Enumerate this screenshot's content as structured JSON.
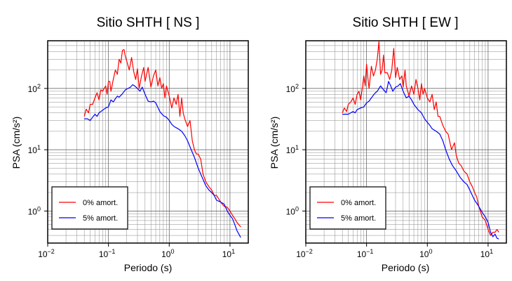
{
  "chart_data": [
    {
      "type": "line",
      "title": "Sitio SHTH [ NS ]",
      "xlabel": "Periodo (s)",
      "ylabel": "PSA (cm/s²)",
      "xscale": "log",
      "yscale": "log",
      "xlim": [
        0.01,
        20
      ],
      "ylim": [
        0.3,
        600
      ],
      "grid": true,
      "legend_position": "bottom-left",
      "x_ticks": [
        {
          "base": "10",
          "exp": "−2"
        },
        {
          "base": "10",
          "exp": "−1"
        },
        {
          "base": "10",
          "exp": "0"
        },
        {
          "base": "10",
          "exp": "1"
        }
      ],
      "y_ticks": [
        {
          "base": "10",
          "exp": "0"
        },
        {
          "base": "10",
          "exp": "1"
        },
        {
          "base": "10",
          "exp": "2"
        }
      ],
      "series": [
        {
          "name": "0% amort.",
          "color": "#ff0000",
          "x": [
            0.04,
            0.043,
            0.047,
            0.05,
            0.055,
            0.06,
            0.065,
            0.07,
            0.075,
            0.08,
            0.085,
            0.09,
            0.095,
            0.1,
            0.105,
            0.11,
            0.12,
            0.13,
            0.14,
            0.15,
            0.16,
            0.17,
            0.18,
            0.19,
            0.2,
            0.22,
            0.24,
            0.26,
            0.28,
            0.3,
            0.32,
            0.35,
            0.38,
            0.4,
            0.43,
            0.45,
            0.5,
            0.55,
            0.6,
            0.65,
            0.7,
            0.75,
            0.8,
            0.85,
            0.9,
            1.0,
            1.1,
            1.2,
            1.3,
            1.4,
            1.5,
            1.6,
            1.7,
            1.8,
            2.0,
            2.2,
            2.4,
            2.6,
            2.8,
            3.0,
            3.3,
            3.6,
            4.0,
            4.5,
            5.0,
            5.5,
            6.0,
            7.0,
            8.0,
            9.0,
            10.0,
            11.0,
            12.0,
            13.0,
            14.0,
            15.0
          ],
          "values": [
            35,
            46,
            40,
            55,
            55,
            70,
            85,
            65,
            95,
            90,
            100,
            110,
            80,
            130,
            130,
            90,
            140,
            200,
            170,
            300,
            260,
            420,
            430,
            330,
            280,
            200,
            320,
            190,
            140,
            210,
            100,
            160,
            220,
            130,
            180,
            220,
            105,
            160,
            200,
            110,
            150,
            100,
            120,
            70,
            110,
            75,
            48,
            70,
            55,
            80,
            35,
            70,
            40,
            32,
            24,
            30,
            14,
            10,
            8.5,
            8.5,
            7,
            4,
            3,
            2.5,
            2.2,
            1.8,
            1.8,
            1.4,
            1.2,
            1.15,
            1.0,
            0.85,
            0.75,
            0.65,
            0.6,
            0.55
          ]
        },
        {
          "name": "5% amort.",
          "color": "#0000ff",
          "x": [
            0.04,
            0.045,
            0.05,
            0.055,
            0.06,
            0.065,
            0.07,
            0.08,
            0.09,
            0.1,
            0.11,
            0.12,
            0.13,
            0.14,
            0.15,
            0.17,
            0.19,
            0.21,
            0.23,
            0.25,
            0.27,
            0.3,
            0.33,
            0.36,
            0.4,
            0.45,
            0.5,
            0.55,
            0.6,
            0.7,
            0.8,
            0.9,
            1.0,
            1.1,
            1.2,
            1.4,
            1.6,
            1.8,
            2.0,
            2.3,
            2.6,
            3.0,
            3.5,
            4.0,
            4.5,
            5.0,
            5.5,
            6.0,
            7.0,
            8.0,
            9.0,
            10.0,
            11.0,
            12.0,
            13.0,
            14.0,
            15.0
          ],
          "values": [
            32,
            32,
            30,
            34,
            38,
            35,
            40,
            44,
            48,
            50,
            65,
            60,
            68,
            75,
            72,
            82,
            95,
            100,
            105,
            115,
            110,
            100,
            90,
            105,
            80,
            62,
            60,
            62,
            58,
            42,
            36,
            34,
            30,
            26,
            24,
            22,
            20,
            17,
            14,
            10,
            7.5,
            5,
            3.5,
            2.6,
            2.2,
            2.0,
            1.8,
            1.5,
            1.4,
            1.3,
            1.0,
            0.85,
            0.75,
            0.6,
            0.48,
            0.42,
            0.37
          ]
        }
      ]
    },
    {
      "type": "line",
      "title": "Sitio SHTH [ EW ]",
      "xlabel": "Periodo (s)",
      "ylabel": "PSA (cm/s²)",
      "xscale": "log",
      "yscale": "log",
      "xlim": [
        0.01,
        20
      ],
      "ylim": [
        0.3,
        600
      ],
      "grid": true,
      "legend_position": "bottom-left",
      "x_ticks": [
        {
          "base": "10",
          "exp": "−2"
        },
        {
          "base": "10",
          "exp": "−1"
        },
        {
          "base": "10",
          "exp": "0"
        },
        {
          "base": "10",
          "exp": "1"
        }
      ],
      "y_ticks": [
        {
          "base": "10",
          "exp": "0"
        },
        {
          "base": "10",
          "exp": "1"
        },
        {
          "base": "10",
          "exp": "2"
        }
      ],
      "series": [
        {
          "name": "0% amort.",
          "color": "#ff0000",
          "x": [
            0.04,
            0.043,
            0.047,
            0.05,
            0.055,
            0.06,
            0.065,
            0.07,
            0.075,
            0.08,
            0.085,
            0.09,
            0.095,
            0.1,
            0.105,
            0.11,
            0.12,
            0.13,
            0.14,
            0.15,
            0.16,
            0.17,
            0.18,
            0.19,
            0.2,
            0.22,
            0.24,
            0.26,
            0.28,
            0.3,
            0.32,
            0.35,
            0.38,
            0.4,
            0.43,
            0.45,
            0.5,
            0.55,
            0.6,
            0.65,
            0.7,
            0.75,
            0.8,
            0.85,
            0.9,
            1.0,
            1.1,
            1.2,
            1.3,
            1.4,
            1.5,
            1.6,
            1.8,
            2.0,
            2.2,
            2.5,
            2.8,
            3.0,
            3.3,
            3.6,
            4.0,
            4.5,
            5.0,
            5.5,
            6.0,
            6.5,
            7.0,
            8.0,
            9.0,
            10.0,
            11.0,
            12.0,
            13.0,
            14.0,
            15.0
          ],
          "values": [
            40,
            48,
            42,
            55,
            60,
            70,
            55,
            80,
            90,
            65,
            100,
            160,
            110,
            250,
            150,
            100,
            230,
            160,
            200,
            300,
            580,
            170,
            200,
            350,
            180,
            180,
            140,
            200,
            450,
            150,
            220,
            140,
            160,
            105,
            200,
            110,
            75,
            110,
            80,
            140,
            100,
            65,
            120,
            80,
            100,
            70,
            60,
            80,
            45,
            60,
            35,
            35,
            25,
            20,
            18,
            10,
            13,
            8,
            6,
            5.5,
            4.5,
            4.0,
            3.0,
            2.5,
            2.0,
            1.7,
            1.2,
            0.8,
            0.7,
            0.5,
            0.4,
            0.45,
            0.45,
            0.5,
            0.45
          ]
        },
        {
          "name": "5% amort.",
          "color": "#0000ff",
          "x": [
            0.04,
            0.045,
            0.05,
            0.055,
            0.06,
            0.065,
            0.07,
            0.08,
            0.09,
            0.1,
            0.11,
            0.12,
            0.13,
            0.14,
            0.15,
            0.17,
            0.19,
            0.21,
            0.23,
            0.25,
            0.27,
            0.3,
            0.33,
            0.36,
            0.4,
            0.45,
            0.5,
            0.55,
            0.6,
            0.7,
            0.8,
            0.9,
            1.0,
            1.1,
            1.2,
            1.4,
            1.6,
            1.8,
            2.0,
            2.3,
            2.6,
            3.0,
            3.5,
            4.0,
            4.5,
            5.0,
            5.5,
            6.0,
            7.0,
            8.0,
            9.0,
            10.0,
            11.0,
            12.0,
            13.0,
            14.0,
            15.0
          ],
          "values": [
            38,
            38,
            38,
            40,
            42,
            40,
            45,
            48,
            50,
            58,
            62,
            70,
            78,
            85,
            90,
            110,
            95,
            85,
            130,
            110,
            90,
            105,
            110,
            120,
            90,
            70,
            75,
            65,
            55,
            45,
            40,
            32,
            28,
            25,
            22,
            20,
            18,
            14,
            10,
            7,
            5.5,
            4.5,
            3.5,
            3.0,
            2.7,
            2.2,
            1.8,
            1.5,
            1.2,
            0.95,
            0.8,
            0.65,
            0.45,
            0.38,
            0.42,
            0.36,
            0.35
          ]
        }
      ]
    }
  ]
}
